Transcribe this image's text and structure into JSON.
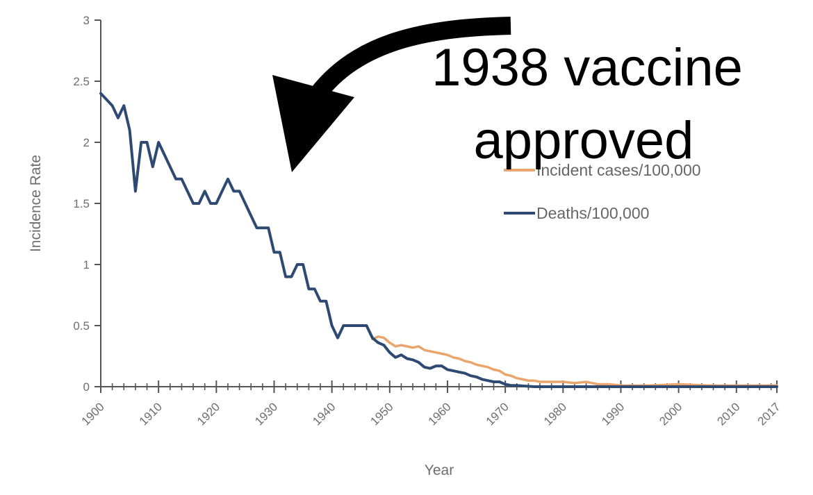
{
  "chart_data": {
    "type": "line",
    "xlabel": "Year",
    "ylabel": "Incidence Rate",
    "xlim": [
      1900,
      2017
    ],
    "ylim": [
      0,
      3
    ],
    "x_ticks": [
      "1900",
      "1910",
      "1920",
      "1930",
      "1940",
      "1950",
      "1960",
      "1970",
      "1980",
      "1990",
      "2000",
      "2010",
      "2017"
    ],
    "y_ticks": [
      "0",
      "0.5",
      "1",
      "1.5",
      "2",
      "2.5",
      "3"
    ],
    "grid": false,
    "legend_position": "right",
    "series": [
      {
        "name": "Incident cases/100,000",
        "color": "#E9A56B",
        "x": [
          1947,
          1948,
          1949,
          1950,
          1951,
          1952,
          1953,
          1954,
          1955,
          1956,
          1957,
          1958,
          1959,
          1960,
          1961,
          1962,
          1963,
          1964,
          1965,
          1966,
          1967,
          1968,
          1969,
          1970,
          1971,
          1972,
          1973,
          1974,
          1975,
          1976,
          1978,
          1980,
          1982,
          1984,
          1985,
          1986,
          1988,
          1990,
          1995,
          2000,
          2005,
          2010,
          2017
        ],
        "y": [
          0.39,
          0.41,
          0.4,
          0.36,
          0.33,
          0.34,
          0.33,
          0.32,
          0.33,
          0.3,
          0.29,
          0.28,
          0.27,
          0.26,
          0.24,
          0.23,
          0.21,
          0.2,
          0.18,
          0.17,
          0.16,
          0.14,
          0.13,
          0.1,
          0.09,
          0.07,
          0.06,
          0.05,
          0.05,
          0.04,
          0.04,
          0.04,
          0.03,
          0.04,
          0.03,
          0.02,
          0.02,
          0.01,
          0.01,
          0.02,
          0.01,
          0.01,
          0.01
        ]
      },
      {
        "name": "Deaths/100,000",
        "color": "#2E4A72",
        "x": [
          1900,
          1901,
          1902,
          1903,
          1904,
          1905,
          1906,
          1907,
          1908,
          1909,
          1910,
          1911,
          1912,
          1913,
          1914,
          1915,
          1916,
          1917,
          1918,
          1919,
          1920,
          1921,
          1922,
          1923,
          1924,
          1925,
          1926,
          1927,
          1928,
          1929,
          1930,
          1931,
          1932,
          1933,
          1934,
          1935,
          1936,
          1937,
          1938,
          1939,
          1940,
          1941,
          1942,
          1943,
          1944,
          1945,
          1946,
          1947,
          1948,
          1949,
          1950,
          1951,
          1952,
          1953,
          1954,
          1955,
          1956,
          1957,
          1958,
          1959,
          1960,
          1961,
          1962,
          1963,
          1964,
          1965,
          1966,
          1967,
          1968,
          1969,
          1970,
          1971,
          1972,
          1975,
          1980,
          1985,
          1990,
          2000,
          2010,
          2017
        ],
        "y": [
          2.4,
          2.35,
          2.3,
          2.2,
          2.3,
          2.1,
          1.6,
          2.0,
          2.0,
          1.8,
          2.0,
          1.9,
          1.8,
          1.7,
          1.7,
          1.6,
          1.5,
          1.5,
          1.6,
          1.5,
          1.5,
          1.6,
          1.7,
          1.6,
          1.6,
          1.5,
          1.4,
          1.3,
          1.3,
          1.3,
          1.1,
          1.1,
          0.9,
          0.9,
          1.0,
          1.0,
          0.8,
          0.8,
          0.7,
          0.7,
          0.5,
          0.4,
          0.5,
          0.5,
          0.5,
          0.5,
          0.5,
          0.4,
          0.36,
          0.34,
          0.28,
          0.24,
          0.26,
          0.23,
          0.22,
          0.2,
          0.16,
          0.15,
          0.17,
          0.17,
          0.14,
          0.13,
          0.12,
          0.11,
          0.09,
          0.08,
          0.06,
          0.05,
          0.04,
          0.04,
          0.02,
          0.01,
          0.01,
          0.0,
          0.0,
          0.0,
          0.0,
          0.0,
          0.0,
          0.0
        ]
      }
    ],
    "annotation": {
      "lines": [
        "1938 vaccine",
        "approved"
      ],
      "arrow": "black curved arrow pointing down-left"
    }
  },
  "colors": {
    "axis": "#555555",
    "tick_text": "#6e6e6e",
    "arrow": "#000000"
  }
}
